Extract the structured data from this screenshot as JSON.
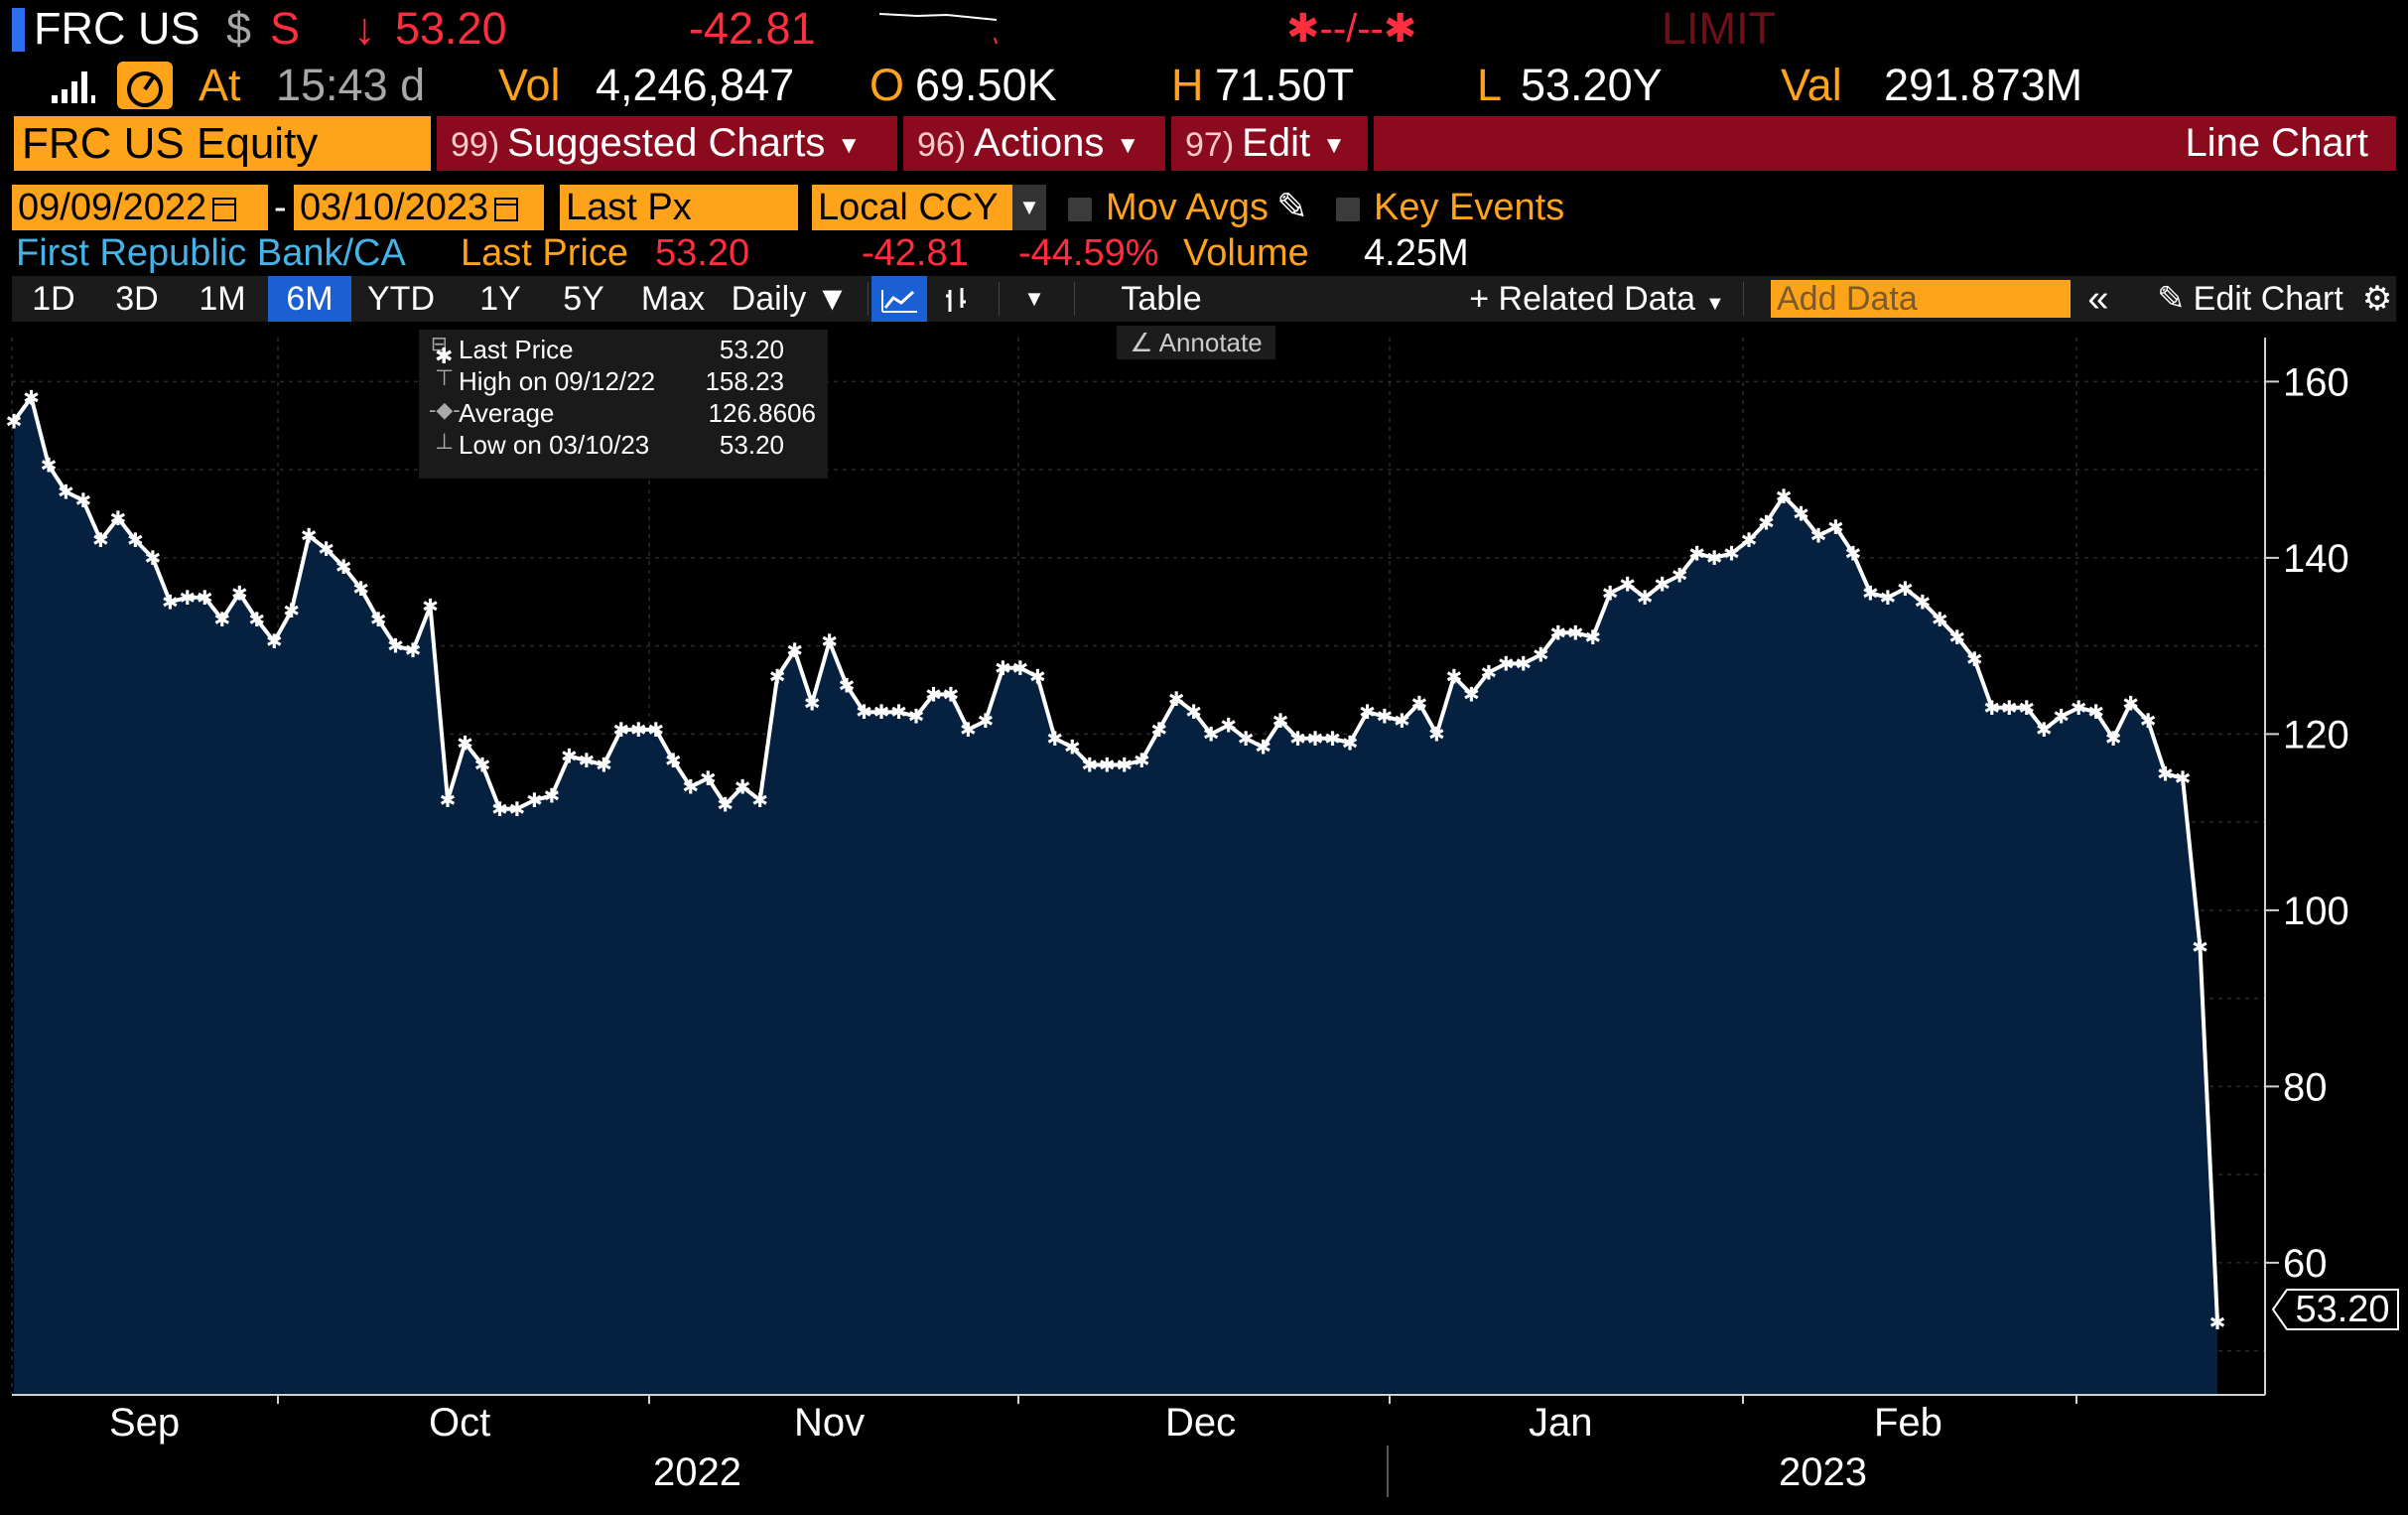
{
  "header": {
    "ticker": "FRC US",
    "currency_symbol": "$",
    "source_flag": "S",
    "arrow": "↓",
    "last_price": "53.20",
    "change": "-42.81",
    "bid_ask": "✱--/--✱",
    "limit_label": "LIMIT",
    "time_label": "At",
    "time_value": "15:43 d",
    "vol_label": "Vol",
    "vol_value": "4,246,847",
    "open_label": "O",
    "open_value": "69.50K",
    "high_label": "H",
    "high_value": "71.50T",
    "low_label": "L",
    "low_value": "53.20Y",
    "val_label": "Val",
    "val_value": "291.873M"
  },
  "function_bar": {
    "security": "FRC US Equity",
    "suggested_num": "99)",
    "suggested_label": "Suggested Charts",
    "actions_num": "96)",
    "actions_label": "Actions",
    "edit_num": "97)",
    "edit_label": "Edit",
    "title": "Line Chart"
  },
  "params": {
    "start_date": "09/09/2022",
    "dash": "-",
    "end_date": "03/10/2023",
    "field": "Last Px",
    "currency": "Local CCY",
    "mov_avgs": "Mov Avgs",
    "key_events": "Key Events"
  },
  "security_row": {
    "name": "First Republic Bank/CA",
    "last_price_label": "Last Price",
    "last_price": "53.20",
    "change": "-42.81",
    "change_pct": "-44.59%",
    "volume_label": "Volume",
    "volume": "4.25M"
  },
  "toolbar": {
    "ranges": [
      "1D",
      "3D",
      "1M",
      "6M",
      "YTD",
      "1Y",
      "5Y",
      "Max"
    ],
    "selected_range": "6M",
    "frequency": "Daily ▼",
    "table": "Table",
    "related_data": "+ Related Data",
    "add_data_placeholder": "Add Data",
    "edit_chart": "Edit Chart",
    "annotate": "Annotate"
  },
  "legend": {
    "last_label": "Last Price",
    "last_value": "53.20",
    "high_label": "High on 09/12/22",
    "high_value": "158.23",
    "avg_label": "Average",
    "avg_value": "126.8606",
    "low_label": "Low on 03/10/23",
    "low_value": "53.20"
  },
  "colors": {
    "orange": "#ffa31a",
    "red": "#ff2e3e",
    "bar_red": "#8b0a1e",
    "area_fill": "#06213f",
    "line": "#ffffff"
  },
  "chart_data": {
    "type": "area",
    "title": "First Republic Bank/CA Last Price",
    "ylabel": "",
    "xlabel": "",
    "ylim": [
      45,
      165
    ],
    "yticks": [
      60,
      80,
      100,
      120,
      140,
      160
    ],
    "last_value_label": "53.20",
    "x_month_labels": [
      "Sep",
      "Oct",
      "Nov",
      "Dec",
      "Jan",
      "Feb"
    ],
    "x_year_labels": [
      "2022",
      "2023"
    ],
    "values": [
      155.5,
      158.2,
      150.5,
      147.5,
      146.5,
      142,
      144.5,
      142,
      140,
      135,
      135.5,
      135.5,
      133,
      136,
      133,
      130.5,
      134,
      142.5,
      141,
      139,
      136.5,
      133,
      130,
      129.5,
      134.5,
      112.5,
      119,
      116.5,
      111.5,
      111.5,
      112.5,
      113,
      117.5,
      117,
      116.5,
      120.5,
      120.5,
      120.5,
      117,
      114,
      115,
      112,
      114,
      112.5,
      126.5,
      129.5,
      123.5,
      130.5,
      125.5,
      122.5,
      122.5,
      122.5,
      122,
      124.5,
      124.5,
      120.5,
      121.5,
      127.5,
      127.5,
      126.5,
      119.5,
      118.5,
      116.5,
      116.5,
      116.5,
      117,
      120.5,
      124,
      122.5,
      120,
      121,
      119.5,
      118.5,
      121.5,
      119.5,
      119.5,
      119.5,
      119,
      122.5,
      122,
      121.5,
      123.5,
      120,
      126.5,
      124.5,
      127,
      128,
      128,
      129,
      131.5,
      131.5,
      131,
      136,
      137,
      135.5,
      137,
      138,
      140.5,
      140,
      140.5,
      142,
      144,
      147,
      145,
      142.5,
      143.5,
      140.5,
      136,
      135.5,
      136.5,
      135,
      133,
      131,
      128.5,
      123,
      123,
      123,
      120.5,
      122,
      123,
      122.5,
      119.5,
      123.5,
      121.5,
      115.5,
      115,
      95.8,
      53.2
    ]
  }
}
